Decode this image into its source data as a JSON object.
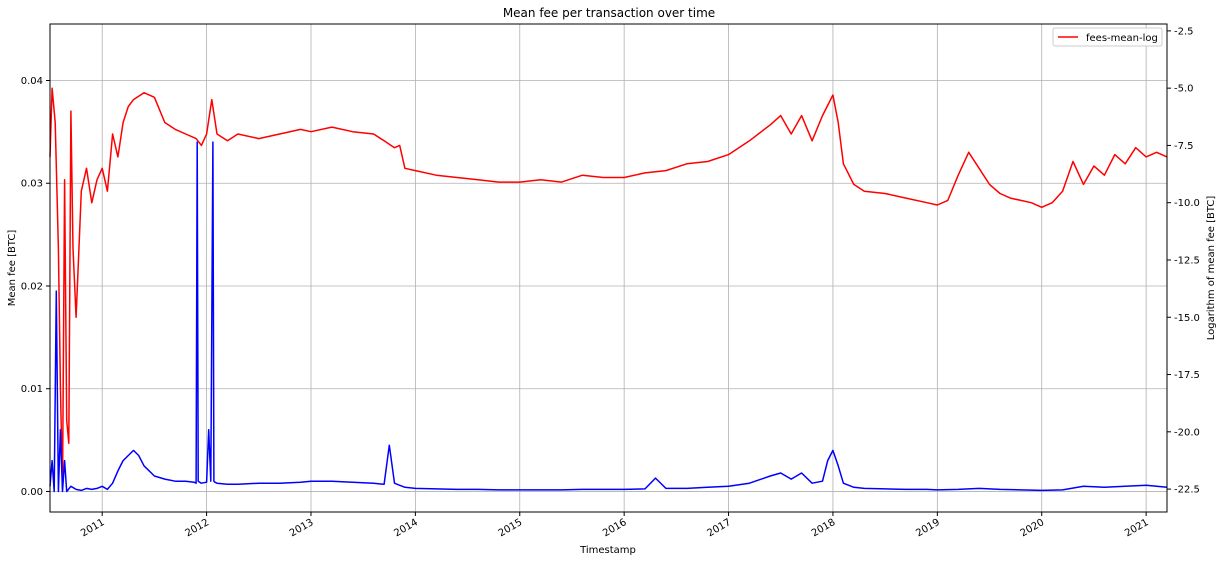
{
  "chart_data": {
    "type": "line",
    "title": "Mean fee per transaction over time",
    "xlabel": "Timestamp",
    "ylabel": "Mean fee [BTC]",
    "ylabel_right": "Logarithm of mean fee [BTC]",
    "grid": true,
    "legend_position": "top-right",
    "legend": [
      "fees-mean-log"
    ],
    "xlim": [
      2010.5,
      2021.2
    ],
    "ylim": [
      -0.002,
      0.0455
    ],
    "ylim_right": [
      -23.5,
      -2.2
    ],
    "x_ticks": [
      "2011",
      "2012",
      "2013",
      "2014",
      "2015",
      "2016",
      "2017",
      "2018",
      "2019",
      "2020",
      "2021"
    ],
    "y_ticks": [
      "0.00",
      "0.01",
      "0.02",
      "0.03",
      "0.04"
    ],
    "y_ticks_right": [
      "-2.5",
      "-5.0",
      "-7.5",
      "-10.0",
      "-12.5",
      "-15.0",
      "-17.5",
      "-20.0",
      "-22.5"
    ],
    "series": [
      {
        "name": "fees-mean-log",
        "axis": "right",
        "color": "#ff0000",
        "x": [
          2010.5,
          2010.52,
          2010.55,
          2010.58,
          2010.6,
          2010.62,
          2010.64,
          2010.66,
          2010.68,
          2010.7,
          2010.72,
          2010.75,
          2010.8,
          2010.85,
          2010.9,
          2010.95,
          2011.0,
          2011.05,
          2011.1,
          2011.15,
          2011.2,
          2011.25,
          2011.3,
          2011.4,
          2011.5,
          2011.6,
          2011.7,
          2011.8,
          2011.9,
          2011.95,
          2012.0,
          2012.05,
          2012.1,
          2012.2,
          2012.3,
          2012.5,
          2012.7,
          2012.9,
          2013.0,
          2013.2,
          2013.4,
          2013.6,
          2013.7,
          2013.8,
          2013.85,
          2013.9,
          2014.0,
          2014.2,
          2014.4,
          2014.6,
          2014.8,
          2015.0,
          2015.2,
          2015.4,
          2015.6,
          2015.8,
          2016.0,
          2016.2,
          2016.4,
          2016.6,
          2016.8,
          2017.0,
          2017.2,
          2017.4,
          2017.5,
          2017.6,
          2017.7,
          2017.8,
          2017.9,
          2018.0,
          2018.05,
          2018.1,
          2018.2,
          2018.3,
          2018.5,
          2018.7,
          2018.9,
          2019.0,
          2019.1,
          2019.2,
          2019.3,
          2019.4,
          2019.5,
          2019.6,
          2019.7,
          2019.8,
          2019.9,
          2020.0,
          2020.1,
          2020.2,
          2020.3,
          2020.4,
          2020.5,
          2020.6,
          2020.7,
          2020.8,
          2020.9,
          2021.0,
          2021.1,
          2021.2
        ],
        "y": [
          -8.0,
          -5.0,
          -6.5,
          -12.0,
          -18.0,
          -22.5,
          -9.0,
          -19.5,
          -20.5,
          -6.0,
          -12.0,
          -15.0,
          -9.5,
          -8.5,
          -10.0,
          -9.0,
          -8.5,
          -9.5,
          -7.0,
          -8.0,
          -6.5,
          -5.8,
          -5.5,
          -5.2,
          -5.4,
          -6.5,
          -6.8,
          -7.0,
          -7.2,
          -7.5,
          -7.0,
          -5.5,
          -7.0,
          -7.3,
          -7.0,
          -7.2,
          -7.0,
          -6.8,
          -6.9,
          -6.7,
          -6.9,
          -7.0,
          -7.3,
          -7.6,
          -7.5,
          -8.5,
          -8.6,
          -8.8,
          -8.9,
          -9.0,
          -9.1,
          -9.1,
          -9.0,
          -9.1,
          -8.8,
          -8.9,
          -8.9,
          -8.7,
          -8.6,
          -8.3,
          -8.2,
          -7.9,
          -7.3,
          -6.6,
          -6.2,
          -7.0,
          -6.2,
          -7.3,
          -6.2,
          -5.3,
          -6.5,
          -8.3,
          -9.2,
          -9.5,
          -9.6,
          -9.8,
          -10.0,
          -10.1,
          -9.9,
          -8.8,
          -7.8,
          -8.5,
          -9.2,
          -9.6,
          -9.8,
          -9.9,
          -10.0,
          -10.2,
          -10.0,
          -9.5,
          -8.2,
          -9.2,
          -8.4,
          -8.8,
          -7.9,
          -8.3,
          -7.6,
          -8.0,
          -7.8,
          -8.0
        ]
      },
      {
        "name": "",
        "axis": "left",
        "color": "#0000ff",
        "x": [
          2010.5,
          2010.52,
          2010.54,
          2010.56,
          2010.58,
          2010.6,
          2010.62,
          2010.64,
          2010.66,
          2010.7,
          2010.75,
          2010.8,
          2010.85,
          2010.9,
          2010.95,
          2011.0,
          2011.05,
          2011.1,
          2011.15,
          2011.2,
          2011.25,
          2011.3,
          2011.35,
          2011.4,
          2011.5,
          2011.6,
          2011.7,
          2011.8,
          2011.88,
          2011.9,
          2011.91,
          2011.92,
          2011.95,
          2012.0,
          2012.02,
          2012.04,
          2012.06,
          2012.07,
          2012.08,
          2012.1,
          2012.2,
          2012.3,
          2012.5,
          2012.7,
          2012.9,
          2013.0,
          2013.2,
          2013.4,
          2013.6,
          2013.7,
          2013.75,
          2013.8,
          2013.85,
          2013.9,
          2014.0,
          2014.2,
          2014.4,
          2014.6,
          2014.8,
          2015.0,
          2015.2,
          2015.4,
          2015.6,
          2015.8,
          2016.0,
          2016.2,
          2016.3,
          2016.4,
          2016.6,
          2016.8,
          2017.0,
          2017.2,
          2017.4,
          2017.5,
          2017.6,
          2017.7,
          2017.8,
          2017.9,
          2017.95,
          2018.0,
          2018.05,
          2018.1,
          2018.2,
          2018.3,
          2018.5,
          2018.7,
          2018.9,
          2019.0,
          2019.2,
          2019.4,
          2019.6,
          2019.8,
          2020.0,
          2020.2,
          2020.4,
          2020.6,
          2020.8,
          2021.0,
          2021.2
        ],
        "y": [
          0.0005,
          0.003,
          0.0,
          0.0195,
          0.0,
          0.006,
          0.0,
          0.003,
          0.0,
          0.0005,
          0.0002,
          0.0001,
          0.0003,
          0.0002,
          0.0003,
          0.0005,
          0.0002,
          0.0008,
          0.002,
          0.003,
          0.0035,
          0.004,
          0.0035,
          0.0025,
          0.0015,
          0.0012,
          0.001,
          0.001,
          0.0009,
          0.0008,
          0.034,
          0.001,
          0.0008,
          0.0009,
          0.006,
          0.001,
          0.034,
          0.001,
          0.0009,
          0.0008,
          0.0007,
          0.0007,
          0.0008,
          0.0008,
          0.0009,
          0.001,
          0.001,
          0.0009,
          0.0008,
          0.0007,
          0.0045,
          0.0008,
          0.0006,
          0.0004,
          0.0003,
          0.00025,
          0.0002,
          0.0002,
          0.00015,
          0.00015,
          0.00015,
          0.00015,
          0.0002,
          0.0002,
          0.0002,
          0.00025,
          0.0013,
          0.0003,
          0.0003,
          0.0004,
          0.0005,
          0.0008,
          0.0015,
          0.0018,
          0.0012,
          0.0018,
          0.0008,
          0.001,
          0.003,
          0.004,
          0.0025,
          0.0008,
          0.0004,
          0.0003,
          0.00025,
          0.0002,
          0.0002,
          0.00015,
          0.0002,
          0.0003,
          0.0002,
          0.00015,
          0.0001,
          0.00015,
          0.0005,
          0.0004,
          0.0005,
          0.0006,
          0.0004
        ]
      }
    ]
  }
}
